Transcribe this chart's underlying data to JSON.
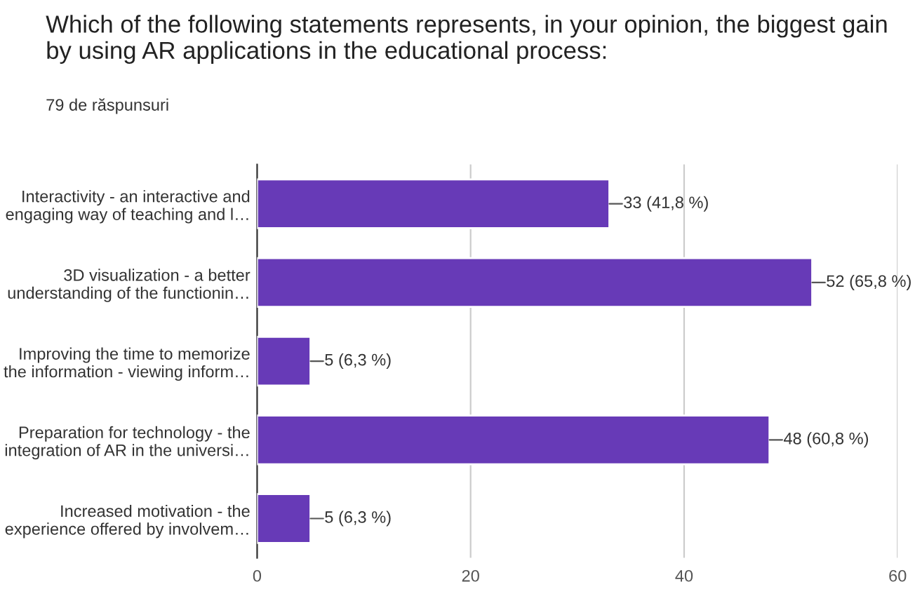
{
  "chart_data": {
    "type": "bar",
    "orientation": "horizontal",
    "title": "Which of the following statements represents, in your opinion, the biggest gain by using AR applications in the educational process:",
    "subtitle": "79 de răspunsuri",
    "categories": [
      "Interactivity - an interactive and\nengaging way of teaching and l…",
      "3D visualization - a better\nunderstanding of the functionin…",
      "Improving the time to memorize\nthe information - viewing inform…",
      "Preparation for technology - the\nintegration of AR in the universi…",
      "Increased motivation - the\nexperience offered by involvem…"
    ],
    "values": [
      33,
      52,
      5,
      48,
      5
    ],
    "value_labels": [
      "33 (41,8 %)",
      "52 (65,8 %)",
      "5 (6,3 %)",
      "48 (60,8 %)",
      "5 (6,3 %)"
    ],
    "color": "#673ab7",
    "xlim": [
      0,
      60
    ],
    "xticks": [
      0,
      20,
      40,
      60
    ],
    "grid": "x",
    "legend": false
  }
}
